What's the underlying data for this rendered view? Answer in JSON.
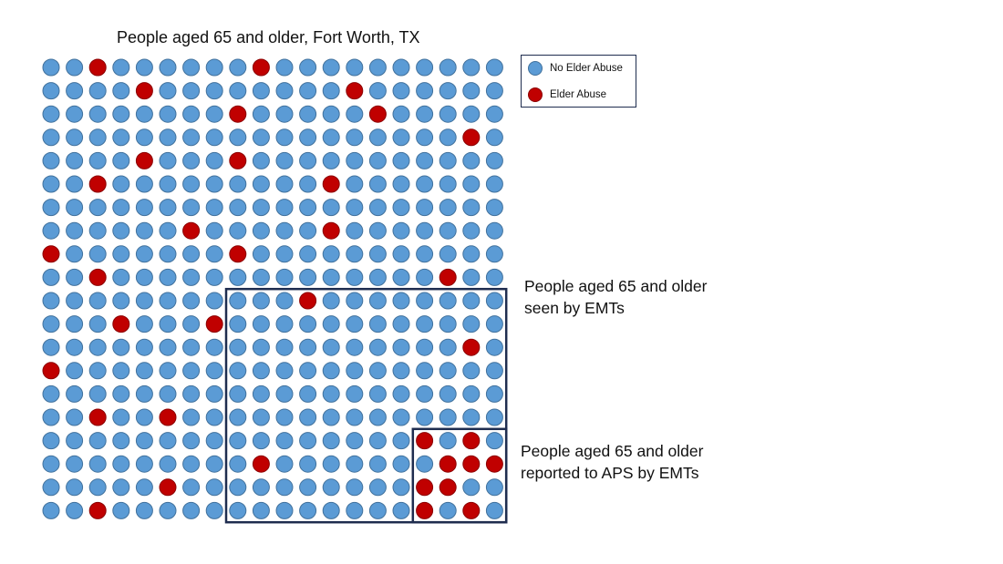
{
  "title": "People aged 65 and older, Fort Worth, TX",
  "legend": [
    {
      "label": "No Elder Abuse",
      "color": "#5b9bd5",
      "stroke": "#41719c"
    },
    {
      "label": "Elder Abuse",
      "color": "#c00000",
      "stroke": "#8b0000"
    }
  ],
  "grid": {
    "rows": 20,
    "cols": 20,
    "abuse_cells": [
      [
        0,
        2
      ],
      [
        0,
        9
      ],
      [
        1,
        4
      ],
      [
        1,
        13
      ],
      [
        2,
        8
      ],
      [
        2,
        14
      ],
      [
        3,
        18
      ],
      [
        4,
        4
      ],
      [
        4,
        8
      ],
      [
        5,
        2
      ],
      [
        5,
        12
      ],
      [
        7,
        6
      ],
      [
        7,
        12
      ],
      [
        8,
        0
      ],
      [
        8,
        8
      ],
      [
        9,
        2
      ],
      [
        9,
        17
      ],
      [
        10,
        11
      ],
      [
        11,
        3
      ],
      [
        11,
        7
      ],
      [
        12,
        18
      ],
      [
        13,
        0
      ],
      [
        15,
        2
      ],
      [
        15,
        5
      ],
      [
        16,
        16
      ],
      [
        16,
        18
      ],
      [
        17,
        9
      ],
      [
        17,
        17
      ],
      [
        17,
        18
      ],
      [
        17,
        19
      ],
      [
        18,
        5
      ],
      [
        18,
        16
      ],
      [
        18,
        17
      ],
      [
        19,
        2
      ],
      [
        19,
        16
      ],
      [
        19,
        18
      ]
    ]
  },
  "boxes": [
    {
      "name": "seen-by-emts",
      "label_lines": [
        "People aged 65 and older",
        "seen by EMTs"
      ],
      "row_start": 10,
      "row_end": 19,
      "col_start": 8,
      "col_end": 19
    },
    {
      "name": "reported-to-aps",
      "label_lines": [
        "People aged 65 and older",
        "reported to APS by EMTs"
      ],
      "row_start": 16,
      "row_end": 19,
      "col_start": 16,
      "col_end": 19
    }
  ],
  "colors": {
    "box_border": "#1f2d4f"
  }
}
